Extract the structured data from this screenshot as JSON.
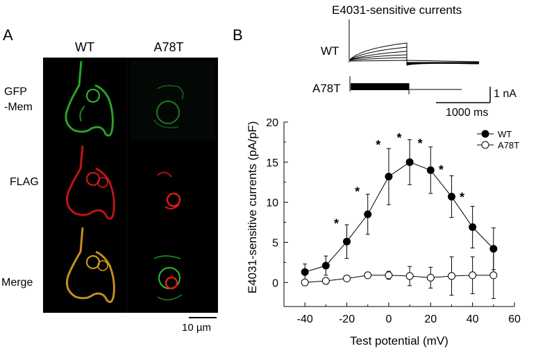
{
  "panels": {
    "a_letter": "A",
    "b_letter": "B"
  },
  "imaging": {
    "columns": [
      "WT",
      "A78T"
    ],
    "rows": [
      "GFP\n-Mem",
      "FLAG",
      "Merge"
    ],
    "row_gfp_line1": "GFP",
    "row_gfp_line2": "-Mem",
    "scale_label": "10 µm",
    "channel_colors": {
      "gfp": "#2fbf2f",
      "flag": "#e01818",
      "merge": "#d8a020"
    }
  },
  "traces": {
    "title": "E4031-sensitive currents",
    "labels": [
      "WT",
      "A78T"
    ],
    "scale_current": "1 nA",
    "scale_time": "1000 ms"
  },
  "chart_data": {
    "type": "line",
    "xlabel": "Test potential (mV)",
    "ylabel": "E4031-sensitive currents (pA/pF)",
    "xlim": [
      -50,
      60
    ],
    "ylim": [
      -3,
      20
    ],
    "xticks": [
      -40,
      -20,
      0,
      20,
      40,
      60
    ],
    "yticks": [
      0,
      5,
      10,
      15,
      20
    ],
    "legend_position": "top-right",
    "x": [
      -40,
      -30,
      -20,
      -10,
      0,
      10,
      20,
      30,
      40,
      50
    ],
    "series": [
      {
        "name": "WT",
        "marker": "filled-circle",
        "values": [
          1.3,
          2.1,
          5.1,
          8.5,
          13.2,
          15.0,
          14.0,
          10.7,
          6.9,
          4.2
        ],
        "errors": [
          1.0,
          1.2,
          2.1,
          2.5,
          3.5,
          2.8,
          2.9,
          2.6,
          2.6,
          2.6
        ]
      },
      {
        "name": "A78T",
        "marker": "open-circle",
        "values": [
          0.0,
          0.2,
          0.5,
          0.9,
          0.9,
          0.8,
          0.6,
          0.8,
          0.9,
          0.9
        ],
        "errors": [
          0.3,
          0.4,
          0.3,
          0.3,
          0.5,
          1.2,
          1.3,
          2.4,
          2.3,
          2.9
        ]
      }
    ],
    "significance": {
      "symbol": "*",
      "x": [
        -25,
        -15,
        -5,
        5,
        15,
        25,
        35
      ],
      "y": [
        7.5,
        11.5,
        17.3,
        18.2,
        17.5,
        14.2,
        10.8
      ]
    }
  }
}
